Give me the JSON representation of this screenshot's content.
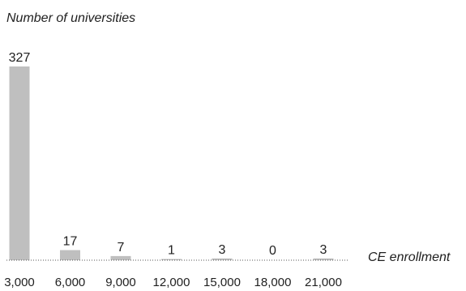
{
  "chart_data": {
    "type": "bar",
    "ylabel": "Number of universities",
    "xlabel": "CE enrollment",
    "categories": [
      "3,000",
      "6,000",
      "9,000",
      "12,000",
      "15,000",
      "18,000",
      "21,000"
    ],
    "values": [
      327,
      17,
      7,
      1,
      3,
      0,
      3
    ],
    "value_labels": [
      "327",
      "17",
      "7",
      "1",
      "3",
      "0",
      "3"
    ],
    "ylim": [
      0,
      327
    ],
    "grid": false,
    "bar_color": "#bfbfbf",
    "text_color": "#1f1f1f"
  }
}
